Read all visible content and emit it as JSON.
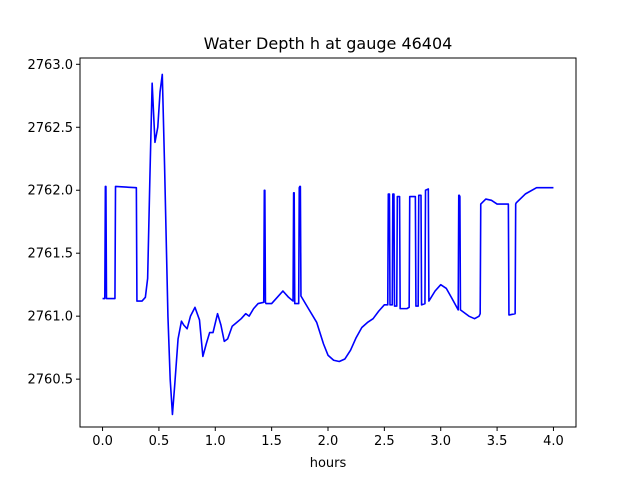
{
  "chart_data": {
    "type": "line",
    "title": "Water Depth h at gauge 46404",
    "xlabel": "hours",
    "ylabel": "",
    "xlim": [
      -0.2,
      4.2
    ],
    "ylim": [
      2760.12,
      2763.05
    ],
    "xticks": [
      0.0,
      0.5,
      1.0,
      1.5,
      2.0,
      2.5,
      3.0,
      3.5,
      4.0
    ],
    "xtick_labels": [
      "0.0",
      "0.5",
      "1.0",
      "1.5",
      "2.0",
      "2.5",
      "3.0",
      "3.5",
      "4.0"
    ],
    "yticks": [
      2760.5,
      2761.0,
      2761.5,
      2762.0,
      2762.5,
      2763.0
    ],
    "ytick_labels": [
      "2760.5",
      "2761.0",
      "2761.5",
      "2762.0",
      "2762.5",
      "2763.0"
    ],
    "grid": false,
    "series": [
      {
        "color": "#0000ff",
        "x": [
          0.0,
          0.02,
          0.025,
          0.03,
          0.035,
          0.04,
          0.05,
          0.11,
          0.115,
          0.3,
          0.305,
          0.35,
          0.38,
          0.4,
          0.42,
          0.44,
          0.465,
          0.49,
          0.51,
          0.53,
          0.55,
          0.58,
          0.6,
          0.62,
          0.64,
          0.67,
          0.7,
          0.72,
          0.75,
          0.78,
          0.82,
          0.86,
          0.89,
          0.92,
          0.95,
          0.98,
          1.02,
          1.05,
          1.08,
          1.11,
          1.15,
          1.19,
          1.23,
          1.27,
          1.3,
          1.34,
          1.38,
          1.43,
          1.435,
          1.44,
          1.445,
          1.45,
          1.5,
          1.55,
          1.6,
          1.65,
          1.69,
          1.695,
          1.7,
          1.705,
          1.71,
          1.74,
          1.745,
          1.75,
          1.755,
          1.76,
          1.82,
          1.9,
          1.96,
          2.0,
          2.05,
          2.1,
          2.15,
          2.2,
          2.25,
          2.3,
          2.35,
          2.4,
          2.45,
          2.5,
          2.53,
          2.535,
          2.545,
          2.55,
          2.57,
          2.575,
          2.585,
          2.59,
          2.61,
          2.615,
          2.635,
          2.64,
          2.7,
          2.72,
          2.725,
          2.775,
          2.78,
          2.8,
          2.805,
          2.825,
          2.83,
          2.86,
          2.865,
          2.89,
          2.895,
          2.95,
          3.0,
          3.05,
          3.1,
          3.155,
          3.16,
          3.165,
          3.17,
          3.175,
          3.25,
          3.3,
          3.34,
          3.35,
          3.355,
          3.4,
          3.45,
          3.5,
          3.54,
          3.6,
          3.605,
          3.61,
          3.66,
          3.665,
          3.67,
          3.75,
          3.85,
          3.95,
          4.0
        ],
        "y": [
          2761.14,
          2761.14,
          2762.03,
          2762.03,
          2761.14,
          2761.14,
          2761.14,
          2761.14,
          2762.03,
          2762.02,
          2761.12,
          2761.12,
          2761.15,
          2761.3,
          2762.1,
          2762.85,
          2762.38,
          2762.5,
          2762.78,
          2762.92,
          2762.2,
          2761.0,
          2760.5,
          2760.22,
          2760.45,
          2760.82,
          2760.96,
          2760.93,
          2760.9,
          2761.0,
          2761.07,
          2760.97,
          2760.68,
          2760.78,
          2760.87,
          2760.87,
          2761.02,
          2760.93,
          2760.8,
          2760.82,
          2760.92,
          2760.95,
          2760.98,
          2761.02,
          2761.0,
          2761.06,
          2761.1,
          2761.11,
          2762.0,
          2762.0,
          2761.11,
          2761.1,
          2761.1,
          2761.15,
          2761.2,
          2761.15,
          2761.12,
          2761.98,
          2761.98,
          2761.1,
          2761.1,
          2761.1,
          2762.02,
          2762.03,
          2762.03,
          2761.16,
          2761.07,
          2760.95,
          2760.78,
          2760.69,
          2760.65,
          2760.64,
          2760.66,
          2760.73,
          2760.83,
          2760.91,
          2760.95,
          2760.98,
          2761.04,
          2761.09,
          2761.09,
          2761.97,
          2761.97,
          2761.09,
          2761.09,
          2761.97,
          2761.97,
          2761.08,
          2761.08,
          2761.95,
          2761.95,
          2761.06,
          2761.06,
          2761.07,
          2761.95,
          2761.95,
          2761.08,
          2761.08,
          2761.96,
          2761.96,
          2761.09,
          2761.1,
          2762.0,
          2762.01,
          2761.12,
          2761.2,
          2761.25,
          2761.22,
          2761.14,
          2761.05,
          2761.96,
          2761.96,
          2761.95,
          2761.05,
          2761.0,
          2760.98,
          2761.0,
          2761.02,
          2761.89,
          2761.93,
          2761.92,
          2761.89,
          2761.89,
          2761.89,
          2761.01,
          2761.01,
          2761.02,
          2761.89,
          2761.9,
          2761.97,
          2762.02,
          2762.02,
          2762.02
        ]
      }
    ]
  }
}
